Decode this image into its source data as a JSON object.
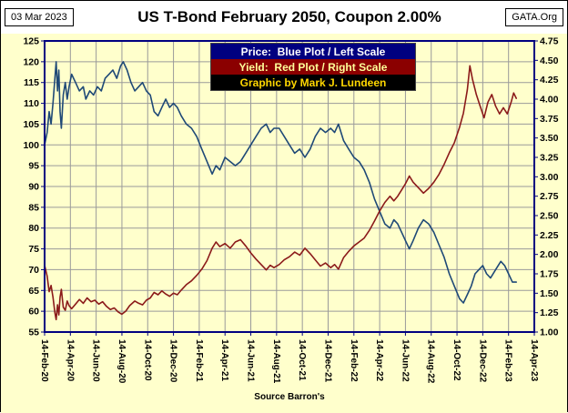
{
  "header": {
    "date": "03 Mar 2023",
    "title": "US T-Bond February 2050, Coupon 2.00%",
    "brand": "GATA.Org"
  },
  "legend": {
    "price": "Price:  Blue Plot / Left Scale",
    "yield": "Yield:  Red Plot / Right Scale",
    "credit": "Graphic by Mark J. Lundeen"
  },
  "footer": {
    "source": "Source Barron's"
  },
  "colors": {
    "background": "#FFFFCC",
    "plot_border": "#000080",
    "grid": "#9A9A9A",
    "price_line": "#1F4977",
    "yield_line": "#8B1A1A",
    "legend_price_bg": "#000080",
    "legend_price_fg": "#FFFFFF",
    "legend_yield_bg": "#8B0000",
    "legend_yield_fg": "#FFFF99",
    "legend_credit_bg": "#000000",
    "legend_credit_fg": "#FFD700"
  },
  "chart_data": {
    "type": "line",
    "title": "US T-Bond February 2050, Coupon 2.00%",
    "xlabel": "",
    "x_unit": "months since 14-Feb-2020, ticks every 2 months",
    "x_range": [
      0,
      38
    ],
    "x_ticks": [
      "14-Feb-20",
      "14-Apr-20",
      "14-Jun-20",
      "14-Aug-20",
      "14-Oct-20",
      "14-Dec-20",
      "14-Feb-21",
      "14-Apr-21",
      "14-Jun-21",
      "14-Aug-21",
      "14-Oct-21",
      "14-Dec-21",
      "14-Feb-22",
      "14-Apr-22",
      "14-Jun-22",
      "14-Aug-22",
      "14-Oct-22",
      "14-Dec-22",
      "14-Feb-23",
      "14-Apr-23"
    ],
    "left_axis": {
      "label": "Price",
      "min": 55,
      "max": 125,
      "step": 5,
      "ticks": [
        "125",
        "120",
        "115",
        "110",
        "105",
        "100",
        "95",
        "90",
        "85",
        "80",
        "75",
        "70",
        "65",
        "60",
        "55"
      ]
    },
    "right_axis": {
      "label": "Yield",
      "min": 1.0,
      "max": 4.75,
      "step": 0.25,
      "ticks": [
        "4.75",
        "4.50",
        "4.25",
        "4.00",
        "3.75",
        "3.50",
        "3.25",
        "3.00",
        "2.75",
        "2.50",
        "2.25",
        "2.00",
        "1.75",
        "1.50",
        "1.25",
        "1.00"
      ]
    },
    "grid": true,
    "legend_position": "top-center",
    "series": [
      {
        "name": "Price",
        "axis": "left",
        "color": "#1F4977",
        "points": [
          [
            0,
            100
          ],
          [
            0.2,
            103
          ],
          [
            0.35,
            108
          ],
          [
            0.5,
            105
          ],
          [
            0.65,
            110
          ],
          [
            0.8,
            116
          ],
          [
            0.9,
            120
          ],
          [
            1.0,
            113
          ],
          [
            1.1,
            118
          ],
          [
            1.2,
            108
          ],
          [
            1.3,
            104
          ],
          [
            1.45,
            112
          ],
          [
            1.6,
            115
          ],
          [
            1.75,
            111
          ],
          [
            1.9,
            114
          ],
          [
            2.1,
            117
          ],
          [
            2.4,
            115
          ],
          [
            2.7,
            113
          ],
          [
            3.0,
            114
          ],
          [
            3.2,
            111
          ],
          [
            3.5,
            113
          ],
          [
            3.8,
            112
          ],
          [
            4.1,
            114
          ],
          [
            4.4,
            113
          ],
          [
            4.7,
            116
          ],
          [
            5.0,
            117
          ],
          [
            5.3,
            118
          ],
          [
            5.6,
            116
          ],
          [
            5.9,
            119
          ],
          [
            6.1,
            120
          ],
          [
            6.4,
            118
          ],
          [
            6.7,
            115
          ],
          [
            7.0,
            113
          ],
          [
            7.3,
            114
          ],
          [
            7.6,
            115
          ],
          [
            7.9,
            113
          ],
          [
            8.2,
            112
          ],
          [
            8.5,
            108
          ],
          [
            8.8,
            107
          ],
          [
            9.1,
            109
          ],
          [
            9.4,
            111
          ],
          [
            9.7,
            109
          ],
          [
            10.0,
            110
          ],
          [
            10.3,
            109
          ],
          [
            10.6,
            107
          ],
          [
            11.0,
            105
          ],
          [
            11.4,
            104
          ],
          [
            11.8,
            102
          ],
          [
            12.2,
            99
          ],
          [
            12.6,
            96
          ],
          [
            13.0,
            93
          ],
          [
            13.3,
            95
          ],
          [
            13.6,
            94
          ],
          [
            14.0,
            97
          ],
          [
            14.4,
            96
          ],
          [
            14.8,
            95
          ],
          [
            15.2,
            96
          ],
          [
            15.6,
            98
          ],
          [
            16.0,
            100
          ],
          [
            16.4,
            102
          ],
          [
            16.8,
            104
          ],
          [
            17.2,
            105
          ],
          [
            17.5,
            103
          ],
          [
            17.8,
            104
          ],
          [
            18.2,
            104
          ],
          [
            18.6,
            102
          ],
          [
            19.0,
            100
          ],
          [
            19.4,
            98
          ],
          [
            19.8,
            99
          ],
          [
            20.2,
            97
          ],
          [
            20.6,
            99
          ],
          [
            21.0,
            102
          ],
          [
            21.4,
            104
          ],
          [
            21.8,
            103
          ],
          [
            22.2,
            104
          ],
          [
            22.5,
            103
          ],
          [
            22.8,
            105
          ],
          [
            23.2,
            101
          ],
          [
            23.6,
            99
          ],
          [
            24.0,
            97
          ],
          [
            24.4,
            96
          ],
          [
            24.8,
            94
          ],
          [
            25.2,
            91
          ],
          [
            25.6,
            87
          ],
          [
            26.0,
            84
          ],
          [
            26.4,
            81
          ],
          [
            26.8,
            80
          ],
          [
            27.1,
            82
          ],
          [
            27.4,
            81
          ],
          [
            27.7,
            79
          ],
          [
            28.0,
            77
          ],
          [
            28.3,
            75
          ],
          [
            28.6,
            77
          ],
          [
            29.0,
            80
          ],
          [
            29.4,
            82
          ],
          [
            29.8,
            81
          ],
          [
            30.2,
            79
          ],
          [
            30.6,
            76
          ],
          [
            31.0,
            73
          ],
          [
            31.4,
            69
          ],
          [
            31.8,
            66
          ],
          [
            32.2,
            63
          ],
          [
            32.5,
            62
          ],
          [
            32.8,
            64
          ],
          [
            33.1,
            66
          ],
          [
            33.4,
            69
          ],
          [
            33.7,
            70
          ],
          [
            34.0,
            71
          ],
          [
            34.3,
            69
          ],
          [
            34.6,
            68
          ],
          [
            35.0,
            70
          ],
          [
            35.4,
            72
          ],
          [
            35.7,
            71
          ],
          [
            36.0,
            69
          ],
          [
            36.3,
            67
          ],
          [
            36.6,
            67
          ]
        ]
      },
      {
        "name": "Yield",
        "axis": "right",
        "color": "#8B1A1A",
        "points": [
          [
            0,
            1.86
          ],
          [
            0.2,
            1.72
          ],
          [
            0.35,
            1.52
          ],
          [
            0.5,
            1.6
          ],
          [
            0.65,
            1.45
          ],
          [
            0.8,
            1.25
          ],
          [
            0.9,
            1.16
          ],
          [
            1.0,
            1.35
          ],
          [
            1.1,
            1.22
          ],
          [
            1.2,
            1.45
          ],
          [
            1.3,
            1.55
          ],
          [
            1.45,
            1.32
          ],
          [
            1.6,
            1.28
          ],
          [
            1.75,
            1.4
          ],
          [
            1.9,
            1.34
          ],
          [
            2.1,
            1.3
          ],
          [
            2.4,
            1.36
          ],
          [
            2.7,
            1.42
          ],
          [
            3.0,
            1.37
          ],
          [
            3.3,
            1.44
          ],
          [
            3.6,
            1.39
          ],
          [
            3.9,
            1.41
          ],
          [
            4.2,
            1.36
          ],
          [
            4.5,
            1.39
          ],
          [
            4.8,
            1.33
          ],
          [
            5.1,
            1.29
          ],
          [
            5.4,
            1.31
          ],
          [
            5.7,
            1.26
          ],
          [
            6.0,
            1.23
          ],
          [
            6.3,
            1.27
          ],
          [
            6.6,
            1.34
          ],
          [
            7.0,
            1.4
          ],
          [
            7.3,
            1.37
          ],
          [
            7.6,
            1.35
          ],
          [
            7.9,
            1.41
          ],
          [
            8.2,
            1.44
          ],
          [
            8.5,
            1.51
          ],
          [
            8.8,
            1.48
          ],
          [
            9.1,
            1.53
          ],
          [
            9.4,
            1.49
          ],
          [
            9.7,
            1.46
          ],
          [
            10.0,
            1.5
          ],
          [
            10.3,
            1.48
          ],
          [
            10.6,
            1.54
          ],
          [
            11.0,
            1.61
          ],
          [
            11.4,
            1.66
          ],
          [
            11.8,
            1.73
          ],
          [
            12.2,
            1.81
          ],
          [
            12.6,
            1.92
          ],
          [
            13.0,
            2.08
          ],
          [
            13.3,
            2.16
          ],
          [
            13.6,
            2.1
          ],
          [
            14.0,
            2.14
          ],
          [
            14.4,
            2.08
          ],
          [
            14.8,
            2.16
          ],
          [
            15.2,
            2.19
          ],
          [
            15.6,
            2.11
          ],
          [
            16.0,
            2.02
          ],
          [
            16.4,
            1.94
          ],
          [
            16.8,
            1.87
          ],
          [
            17.2,
            1.8
          ],
          [
            17.5,
            1.86
          ],
          [
            17.8,
            1.83
          ],
          [
            18.2,
            1.87
          ],
          [
            18.6,
            1.93
          ],
          [
            19.0,
            1.97
          ],
          [
            19.4,
            2.03
          ],
          [
            19.8,
            1.99
          ],
          [
            20.2,
            2.08
          ],
          [
            20.6,
            2.01
          ],
          [
            21.0,
            1.93
          ],
          [
            21.4,
            1.85
          ],
          [
            21.8,
            1.89
          ],
          [
            22.2,
            1.83
          ],
          [
            22.5,
            1.87
          ],
          [
            22.8,
            1.81
          ],
          [
            23.2,
            1.96
          ],
          [
            23.6,
            2.04
          ],
          [
            24.0,
            2.11
          ],
          [
            24.4,
            2.16
          ],
          [
            24.8,
            2.21
          ],
          [
            25.2,
            2.31
          ],
          [
            25.6,
            2.43
          ],
          [
            26.0,
            2.56
          ],
          [
            26.4,
            2.67
          ],
          [
            26.8,
            2.75
          ],
          [
            27.1,
            2.69
          ],
          [
            27.4,
            2.75
          ],
          [
            27.7,
            2.83
          ],
          [
            28.0,
            2.91
          ],
          [
            28.3,
            3.01
          ],
          [
            28.6,
            2.93
          ],
          [
            29.0,
            2.86
          ],
          [
            29.4,
            2.79
          ],
          [
            29.8,
            2.85
          ],
          [
            30.2,
            2.93
          ],
          [
            30.6,
            3.03
          ],
          [
            31.0,
            3.16
          ],
          [
            31.4,
            3.31
          ],
          [
            31.8,
            3.44
          ],
          [
            32.2,
            3.64
          ],
          [
            32.5,
            3.82
          ],
          [
            32.8,
            4.12
          ],
          [
            33.0,
            4.43
          ],
          [
            33.2,
            4.26
          ],
          [
            33.5,
            4.06
          ],
          [
            33.8,
            3.91
          ],
          [
            34.1,
            3.76
          ],
          [
            34.4,
            3.96
          ],
          [
            34.7,
            4.06
          ],
          [
            35.0,
            3.91
          ],
          [
            35.3,
            3.81
          ],
          [
            35.6,
            3.89
          ],
          [
            35.9,
            3.81
          ],
          [
            36.2,
            3.96
          ],
          [
            36.4,
            4.08
          ],
          [
            36.6,
            4.01
          ]
        ]
      }
    ]
  }
}
